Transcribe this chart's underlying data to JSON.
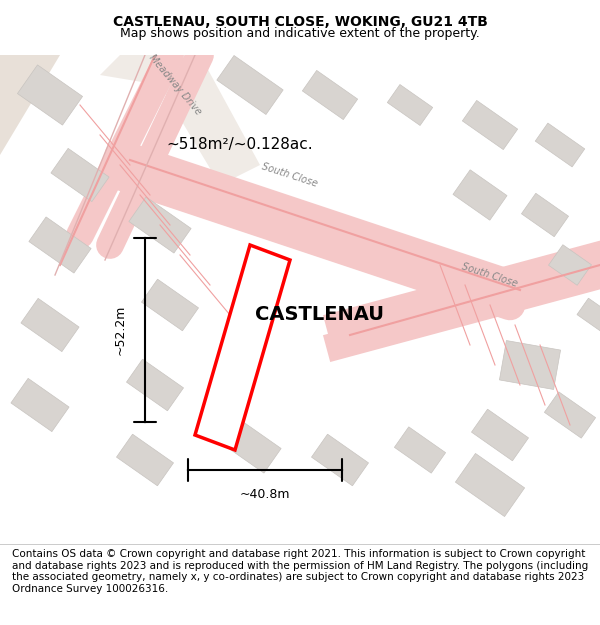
{
  "title": "CASTLENAU, SOUTH CLOSE, WOKING, GU21 4TB",
  "subtitle": "Map shows position and indicative extent of the property.",
  "footer": "Contains OS data © Crown copyright and database right 2021. This information is subject to Crown copyright and database rights 2023 and is reproduced with the permission of HM Land Registry. The polygons (including the associated geometry, namely x, y co-ordinates) are subject to Crown copyright and database rights 2023 Ordnance Survey 100026316.",
  "area_label": "~518m²/~0.128ac.",
  "property_label": "CASTLENAU",
  "dim_width": "~40.8m",
  "dim_height": "~52.2m",
  "bg_map_color": "#f5f0ee",
  "road_color": "#f5c8c8",
  "building_color": "#e8e4e0",
  "highlight_color": "#ff0000",
  "highlight_fill": "#ffffff",
  "road_line_color": "#e8a0a0",
  "gray_area_color": "#d8d0c8",
  "title_fontsize": 10,
  "subtitle_fontsize": 9,
  "footer_fontsize": 7.5
}
